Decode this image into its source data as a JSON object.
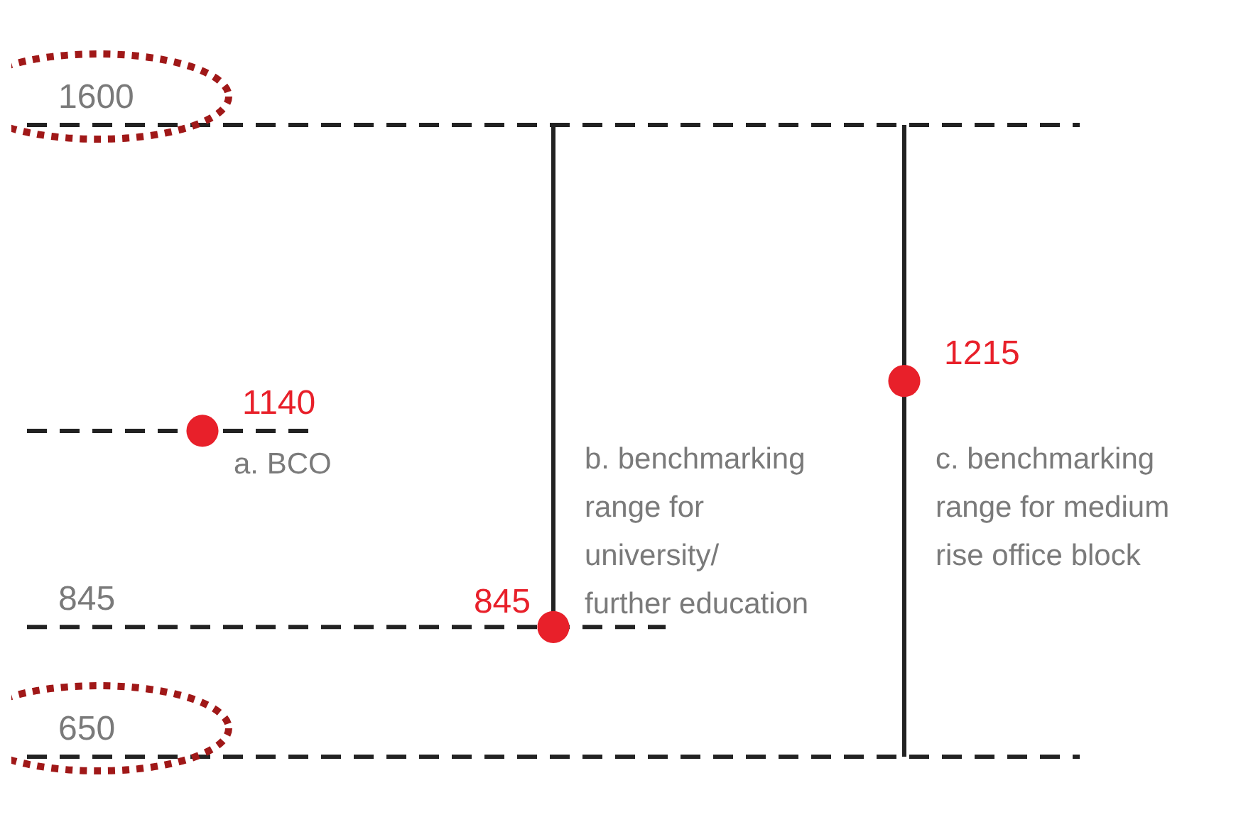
{
  "chart_data": {
    "type": "scatter",
    "categories": [
      "a. BCO",
      "b. benchmarking range for university/ further education",
      "c. benchmarking range for medium rise office block"
    ],
    "series": [
      {
        "color": "#e8202a",
        "values": [
          1140,
          845,
          1215
        ],
        "errors": [
          null,
          [
            845,
            1600
          ],
          [
            650,
            1600
          ]
        ]
      }
    ],
    "data_labels": true,
    "ylim": [
      650,
      1600
    ],
    "yticks": [
      650,
      845,
      1600
    ],
    "tick_labels": "y",
    "grid": false,
    "legend": false,
    "marker": "circle",
    "ref_lines": [
      {
        "axis": "y",
        "value": 1600,
        "label": null,
        "line_style": "dashed"
      },
      {
        "axis": "y",
        "value": 1140,
        "label": null,
        "line_style": "dashed"
      },
      {
        "axis": "y",
        "value": 845,
        "label": null,
        "line_style": "dashed"
      },
      {
        "axis": "y",
        "value": 650,
        "label": null,
        "line_style": "dashed"
      }
    ]
  }
}
